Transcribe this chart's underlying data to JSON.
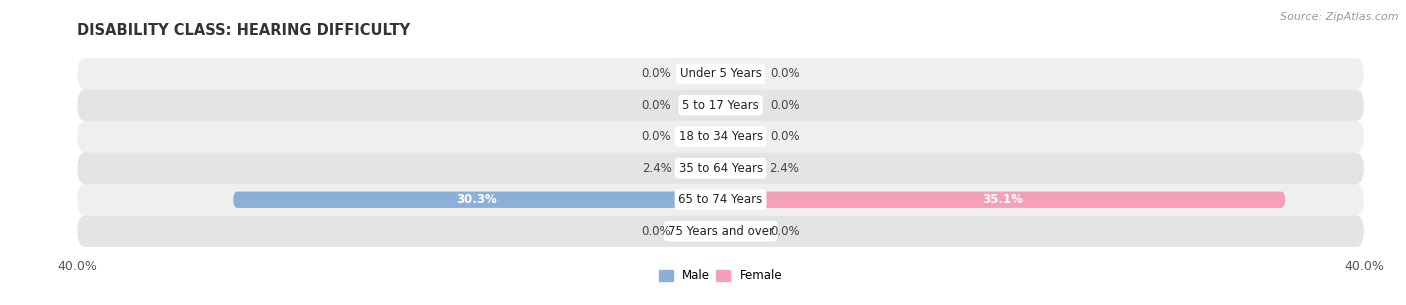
{
  "title": "DISABILITY CLASS: HEARING DIFFICULTY",
  "source": "Source: ZipAtlas.com",
  "categories": [
    "Under 5 Years",
    "5 to 17 Years",
    "18 to 34 Years",
    "35 to 64 Years",
    "65 to 74 Years",
    "75 Years and over"
  ],
  "male_values": [
    0.0,
    0.0,
    0.0,
    2.4,
    30.3,
    0.0
  ],
  "female_values": [
    0.0,
    0.0,
    0.0,
    2.4,
    35.1,
    0.0
  ],
  "male_color": "#8ab0d8",
  "female_color": "#f4a0b8",
  "male_color_dark": "#5b8ec7",
  "female_color_dark": "#e8638a",
  "row_bg_even": "#efefef",
  "row_bg_odd": "#e4e4e4",
  "xlim": 40.0,
  "title_fontsize": 10.5,
  "source_fontsize": 8,
  "label_fontsize": 8.5,
  "cat_fontsize": 8.5,
  "bar_height": 0.52,
  "zero_stub": 2.5,
  "fig_width": 14.06,
  "fig_height": 3.05
}
